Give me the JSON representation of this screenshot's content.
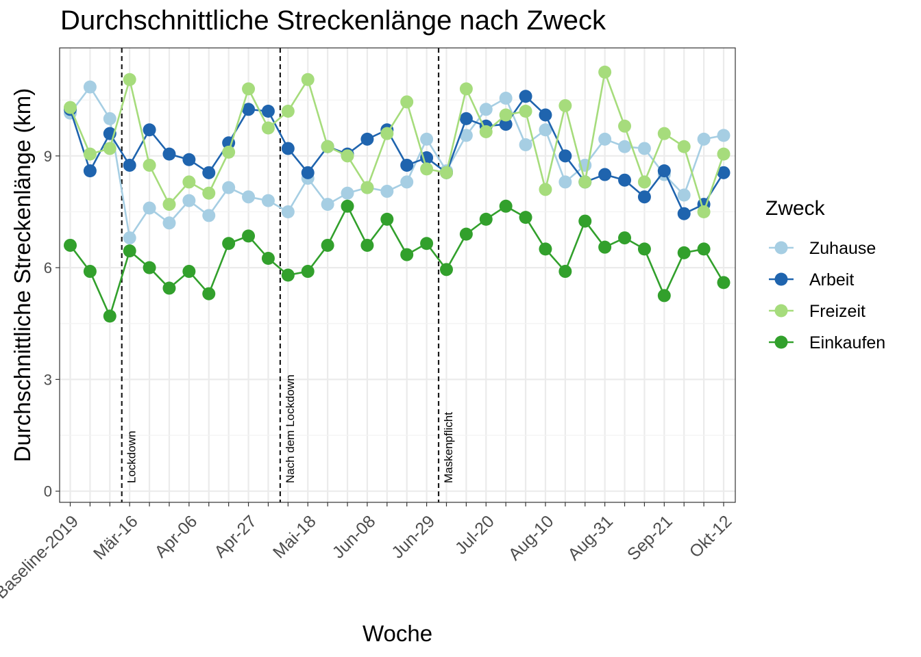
{
  "chart_data": {
    "type": "line",
    "title": "Durchschnittliche Streckenlänge nach Zweck",
    "xlabel": "Woche",
    "ylabel": "Durchschnittliche Streckenlänge (km)",
    "ylim": [
      -0.3,
      11.9
    ],
    "yticks": [
      0,
      3,
      6,
      9
    ],
    "grid": true,
    "legend_position": "right",
    "legend_title": "Zweck",
    "x": [
      "Baseline-2019",
      "Feb-24",
      "Mär-02",
      "Mär-16",
      "Mär-23",
      "Mär-30",
      "Apr-06",
      "Apr-13",
      "Apr-20",
      "Apr-27",
      "Mai-04",
      "Mai-11",
      "Mai-18",
      "Mai-25",
      "Jun-01",
      "Jun-08",
      "Jun-15",
      "Jun-22",
      "Jun-29",
      "Jul-06",
      "Jul-13",
      "Jul-20",
      "Jul-27",
      "Aug-03",
      "Aug-10",
      "Aug-17",
      "Aug-24",
      "Aug-31",
      "Sep-07",
      "Sep-14",
      "Sep-21",
      "Sep-28",
      "Okt-05",
      "Okt-12"
    ],
    "x_tick_labels": [
      {
        "index": 0,
        "label": "Baseline-2019"
      },
      {
        "index": 3,
        "label": "Mär-16"
      },
      {
        "index": 6,
        "label": "Apr-06"
      },
      {
        "index": 9,
        "label": "Apr-27"
      },
      {
        "index": 12,
        "label": "Mai-18"
      },
      {
        "index": 15,
        "label": "Jun-08"
      },
      {
        "index": 18,
        "label": "Jun-29"
      },
      {
        "index": 21,
        "label": "Jul-20"
      },
      {
        "index": 24,
        "label": "Aug-10"
      },
      {
        "index": 27,
        "label": "Aug-31"
      },
      {
        "index": 30,
        "label": "Sep-21"
      },
      {
        "index": 33,
        "label": "Okt-12"
      }
    ],
    "series": [
      {
        "name": "Zuhause",
        "color": "#a6cee3",
        "values": [
          10.15,
          10.85,
          10.0,
          6.8,
          7.6,
          7.2,
          7.8,
          7.4,
          8.15,
          7.9,
          7.8,
          7.5,
          8.4,
          7.7,
          8.0,
          8.15,
          8.05,
          8.3,
          9.45,
          8.6,
          9.55,
          10.25,
          10.55,
          9.3,
          9.7,
          8.3,
          8.75,
          9.45,
          9.25,
          9.2,
          8.5,
          7.95,
          9.45,
          9.55
        ]
      },
      {
        "name": "Arbeit",
        "color": "#1f64ae",
        "values": [
          10.25,
          8.6,
          9.6,
          8.75,
          9.7,
          9.05,
          8.9,
          8.55,
          9.35,
          10.25,
          10.2,
          9.2,
          8.55,
          9.25,
          9.05,
          9.45,
          9.7,
          8.75,
          8.95,
          8.55,
          10.0,
          9.8,
          9.85,
          10.6,
          10.1,
          9.0,
          8.3,
          8.5,
          8.35,
          7.9,
          8.6,
          7.45,
          7.7,
          8.55
        ]
      },
      {
        "name": "Freizeit",
        "color": "#a6dc7c",
        "values": [
          10.3,
          9.05,
          9.2,
          11.05,
          8.75,
          7.7,
          8.3,
          8.0,
          9.1,
          10.8,
          9.75,
          10.2,
          11.05,
          9.25,
          9.0,
          8.15,
          9.6,
          10.45,
          8.65,
          8.55,
          10.8,
          9.65,
          10.1,
          10.2,
          8.1,
          10.35,
          8.3,
          11.25,
          9.8,
          8.3,
          9.6,
          9.25,
          7.5,
          9.05
        ]
      },
      {
        "name": "Einkaufen",
        "color": "#32a02c",
        "values": [
          6.6,
          5.9,
          4.7,
          6.45,
          6.0,
          5.45,
          5.9,
          5.3,
          6.65,
          6.85,
          6.25,
          5.8,
          5.9,
          6.6,
          7.65,
          6.6,
          7.3,
          6.35,
          6.65,
          5.95,
          6.9,
          7.3,
          7.65,
          7.35,
          6.5,
          5.9,
          7.25,
          6.55,
          6.8,
          6.5,
          5.25,
          6.4,
          6.5,
          5.6
        ]
      }
    ],
    "vlines": [
      {
        "x_after_index": 2.5,
        "label": "Lockdown"
      },
      {
        "x_after_index": 10.5,
        "label": "Nach dem Lockdown"
      },
      {
        "x_after_index": 18.5,
        "label": "Maskenpflicht"
      }
    ]
  }
}
